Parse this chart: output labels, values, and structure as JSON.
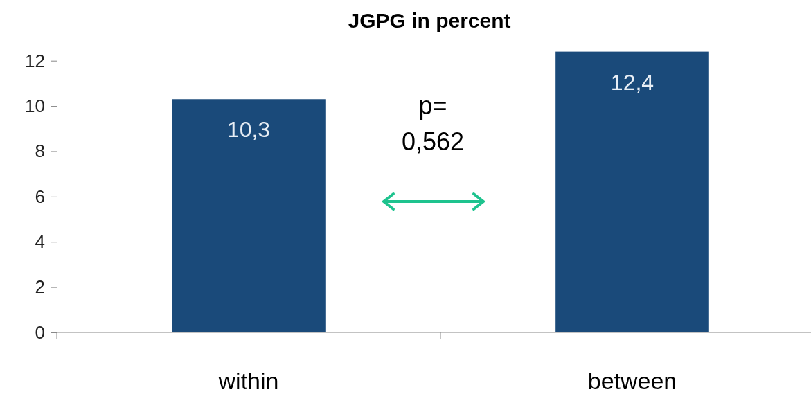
{
  "chart_data": {
    "type": "bar",
    "title": "JGPG in percent",
    "categories": [
      "within",
      "between"
    ],
    "values": [
      10.3,
      12.4
    ],
    "value_labels": [
      "10,3",
      "12,4"
    ],
    "color": "#1a4a7a",
    "ylim": [
      0,
      13
    ],
    "yticks": [
      0,
      2,
      4,
      6,
      8,
      10,
      12
    ],
    "annotations": [
      "p= 0,562"
    ]
  }
}
